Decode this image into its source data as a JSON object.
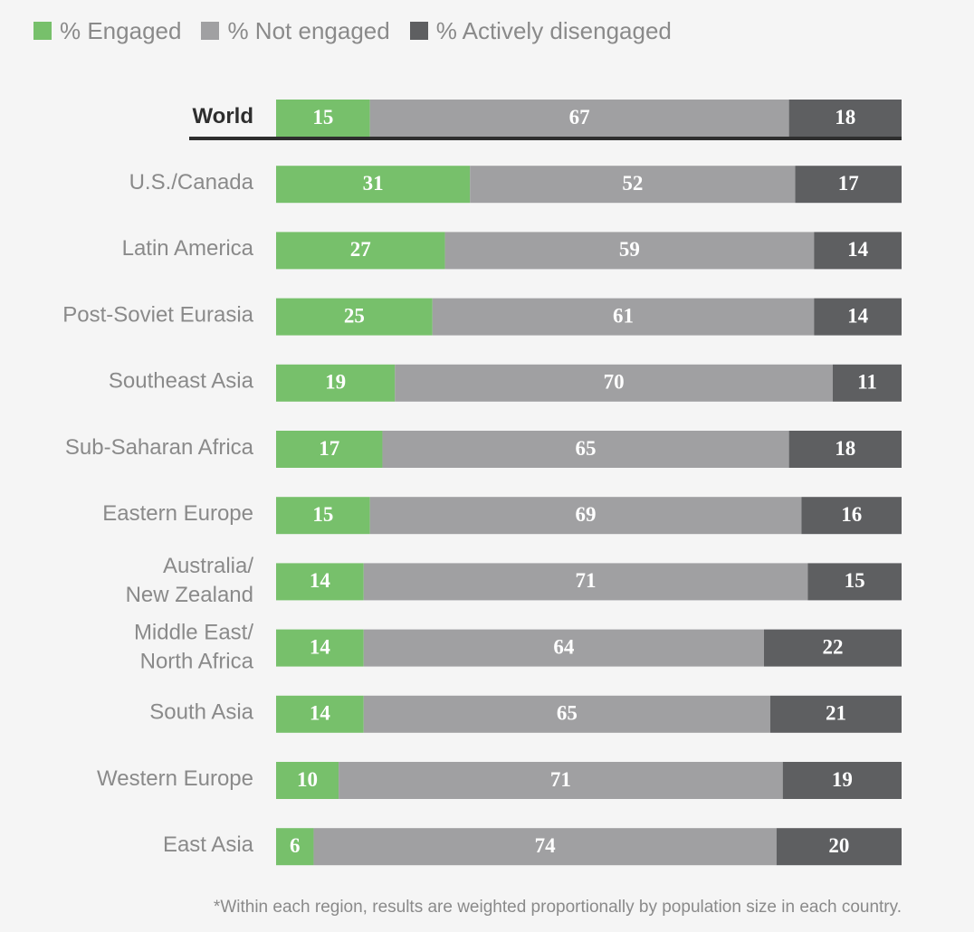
{
  "legend": [
    {
      "label": "% Engaged",
      "color": "#77c06b"
    },
    {
      "label": "% Not engaged",
      "color": "#a0a0a2"
    },
    {
      "label": "% Actively disengaged",
      "color": "#5e5f61"
    }
  ],
  "chart_data": {
    "type": "bar",
    "orientation": "horizontal",
    "stacked": true,
    "title": "",
    "xlabel": "",
    "ylabel": "",
    "xlim": [
      0,
      100
    ],
    "categories": [
      "World",
      "U.S./Canada",
      "Latin America",
      "Post-Soviet Eurasia",
      "Southeast Asia",
      "Sub-Saharan Africa",
      "Eastern Europe",
      "Australia/ New Zealand",
      "Middle East/ North Africa",
      "South Asia",
      "Western Europe",
      "East Asia"
    ],
    "series": [
      {
        "name": "% Engaged",
        "color": "#77c06b",
        "values": [
          15,
          31,
          27,
          25,
          19,
          17,
          15,
          14,
          14,
          14,
          10,
          6
        ]
      },
      {
        "name": "% Not engaged",
        "color": "#a0a0a2",
        "values": [
          67,
          52,
          59,
          61,
          70,
          65,
          69,
          71,
          64,
          65,
          71,
          74
        ]
      },
      {
        "name": "% Actively disengaged",
        "color": "#5e5f61",
        "values": [
          18,
          17,
          14,
          14,
          11,
          18,
          16,
          15,
          22,
          21,
          19,
          20
        ]
      }
    ],
    "legend_position": "top-left",
    "grid": false
  },
  "footnote": "*Within each region, results are weighted proportionally by population size in each country."
}
